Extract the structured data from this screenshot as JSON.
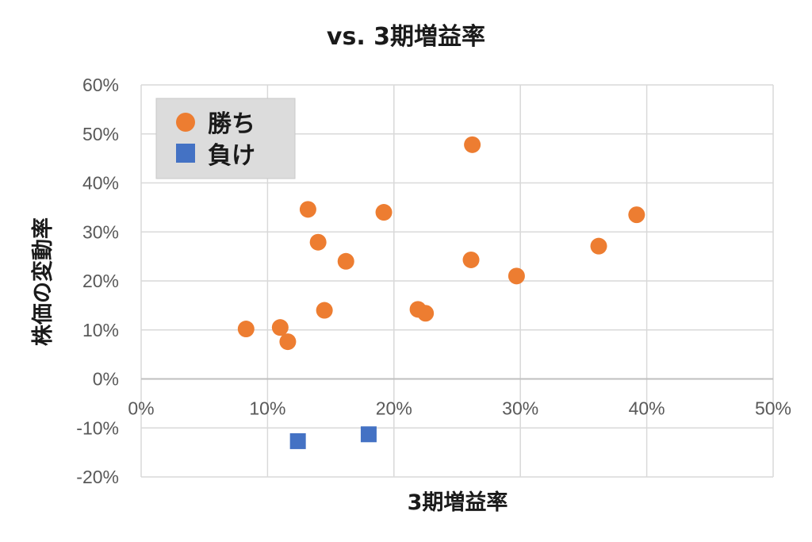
{
  "chart_data": {
    "type": "scatter",
    "title": "vs. 3期増益率",
    "xlabel": "3期増益率",
    "ylabel": "株価の変動率",
    "xlim": [
      0,
      0.5
    ],
    "ylim": [
      -0.2,
      0.6
    ],
    "x_ticks": [
      "0%",
      "10%",
      "20%",
      "30%",
      "40%",
      "50%"
    ],
    "y_ticks": [
      "-20%",
      "-10%",
      "0%",
      "10%",
      "20%",
      "30%",
      "40%",
      "50%",
      "60%"
    ],
    "grid": true,
    "legend_position": "top-left",
    "series": [
      {
        "name": "勝ち",
        "marker": "circle",
        "color": "#ED7D31",
        "points": [
          [
            0.083,
            0.102
          ],
          [
            0.11,
            0.105
          ],
          [
            0.116,
            0.076
          ],
          [
            0.132,
            0.346
          ],
          [
            0.14,
            0.279
          ],
          [
            0.145,
            0.14
          ],
          [
            0.162,
            0.24
          ],
          [
            0.192,
            0.34
          ],
          [
            0.219,
            0.142
          ],
          [
            0.225,
            0.134
          ],
          [
            0.262,
            0.478
          ],
          [
            0.261,
            0.243
          ],
          [
            0.297,
            0.21
          ],
          [
            0.362,
            0.271
          ],
          [
            0.392,
            0.335
          ]
        ]
      },
      {
        "name": "負け",
        "marker": "square",
        "color": "#4472C4",
        "points": [
          [
            0.124,
            -0.127
          ],
          [
            0.18,
            -0.113
          ]
        ]
      }
    ]
  }
}
